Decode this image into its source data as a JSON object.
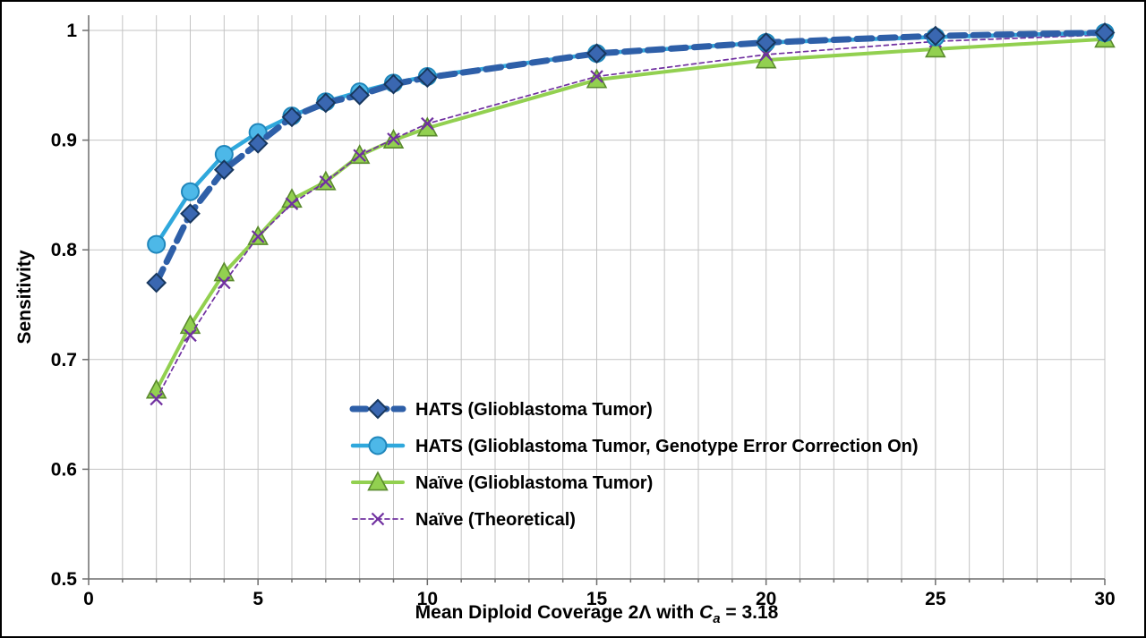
{
  "figure": {
    "ylabel": "Sensitivity",
    "xlabel_prefix": "Mean Diploid Coverage 2Λ with ",
    "xlabel_var": "C",
    "xlabel_sub": "a",
    "xlabel_suffix": " = 3.18"
  },
  "chart_data": {
    "type": "line",
    "title": "",
    "xlabel": "Mean Diploid Coverage 2Λ with Ca = 3.18",
    "ylabel": "Sensitivity",
    "xlim": [
      0,
      30
    ],
    "ylim": [
      0.5,
      1.0
    ],
    "x_ticks": [
      0,
      5,
      10,
      15,
      20,
      25,
      30
    ],
    "x_tick_labels": [
      "0",
      "5",
      "10",
      "15",
      "20",
      "25",
      "30"
    ],
    "y_ticks": [
      0.5,
      0.6,
      0.7,
      0.8,
      0.9,
      1.0
    ],
    "y_tick_labels": [
      "0.5",
      "0.6",
      "0.7",
      "0.8",
      "0.9",
      "1"
    ],
    "minor_x_grid_step": 1,
    "grid": true,
    "legend_position": "inside-bottom-center",
    "x": [
      2,
      3,
      4,
      5,
      6,
      7,
      8,
      9,
      10,
      15,
      20,
      25,
      30
    ],
    "series": [
      {
        "name": "HATS (Glioblastoma Tumor)",
        "line_color": "#2e5fa8",
        "line_style": "dashed",
        "line_width": 7,
        "marker": "diamond",
        "marker_fill": "#3a67b1",
        "marker_stroke": "#17375e",
        "values": [
          0.77,
          0.833,
          0.873,
          0.897,
          0.921,
          0.934,
          0.941,
          0.951,
          0.957,
          0.979,
          0.989,
          0.995,
          0.998
        ]
      },
      {
        "name": "HATS (Glioblastoma Tumor, Genotype Error Correction On)",
        "line_color": "#2fa8dc",
        "line_style": "solid",
        "line_width": 4.5,
        "marker": "circle",
        "marker_fill": "#4db8e8",
        "marker_stroke": "#1f86bb",
        "values": [
          0.805,
          0.853,
          0.887,
          0.907,
          0.922,
          0.935,
          0.944,
          0.952,
          0.958,
          0.979,
          0.989,
          0.994,
          0.998
        ]
      },
      {
        "name": "Naïve (Glioblastoma Tumor)",
        "line_color": "#92d050",
        "line_style": "solid",
        "line_width": 4,
        "marker": "triangle",
        "marker_fill": "#92d050",
        "marker_stroke": "#5a8a2d",
        "values": [
          0.672,
          0.731,
          0.779,
          0.812,
          0.846,
          0.862,
          0.886,
          0.9,
          0.911,
          0.955,
          0.973,
          0.983,
          0.992
        ]
      },
      {
        "name": "Naïve (Theoretical)",
        "line_color": "#7030a0",
        "line_style": "dashed-thin",
        "line_width": 1.7,
        "marker": "x",
        "marker_fill": "#7030a0",
        "marker_stroke": "#7030a0",
        "values": [
          0.664,
          0.722,
          0.77,
          0.812,
          0.842,
          0.862,
          0.886,
          0.901,
          0.915,
          0.958,
          0.978,
          0.99,
          0.996
        ]
      }
    ]
  }
}
